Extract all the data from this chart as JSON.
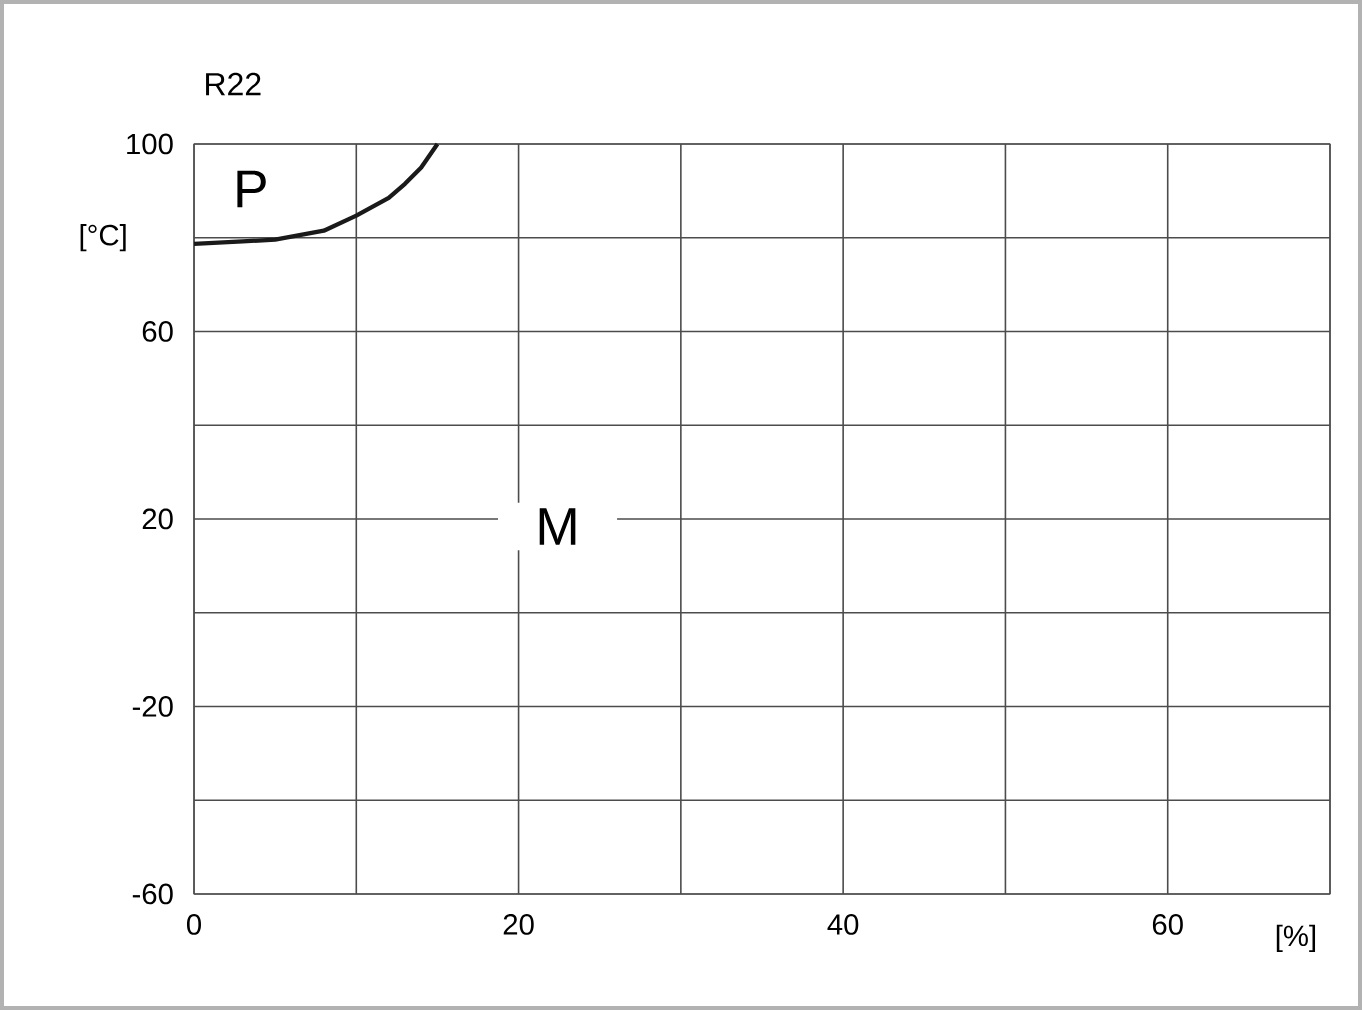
{
  "chart_data": {
    "type": "line",
    "title": "R22",
    "xlabel": "[%]",
    "ylabel": "[°C]",
    "x": [
      0,
      3,
      5,
      8,
      10,
      12,
      13,
      14,
      15
    ],
    "series": [
      {
        "color": "#1a1a1a",
        "values": [
          78.7,
          79.2,
          79.6,
          81.5,
          84.7,
          88.5,
          91.5,
          95,
          100
        ]
      }
    ],
    "xlim": [
      0,
      70
    ],
    "xticks": [
      0,
      {
        "value": 10,
        "label": null
      },
      20,
      {
        "value": 30,
        "label": null
      },
      40,
      {
        "value": 50,
        "label": null
      },
      60,
      {
        "value": 70,
        "label": null
      }
    ],
    "ylim": [
      -60,
      100
    ],
    "yticks": [
      -60,
      {
        "value": -40,
        "label": null
      },
      -20,
      {
        "value": 0,
        "label": null
      },
      20,
      {
        "value": 40,
        "label": null
      },
      60,
      {
        "value": 80,
        "label": null
      },
      100
    ],
    "grid": true,
    "annotations": [
      "P",
      "M"
    ]
  }
}
